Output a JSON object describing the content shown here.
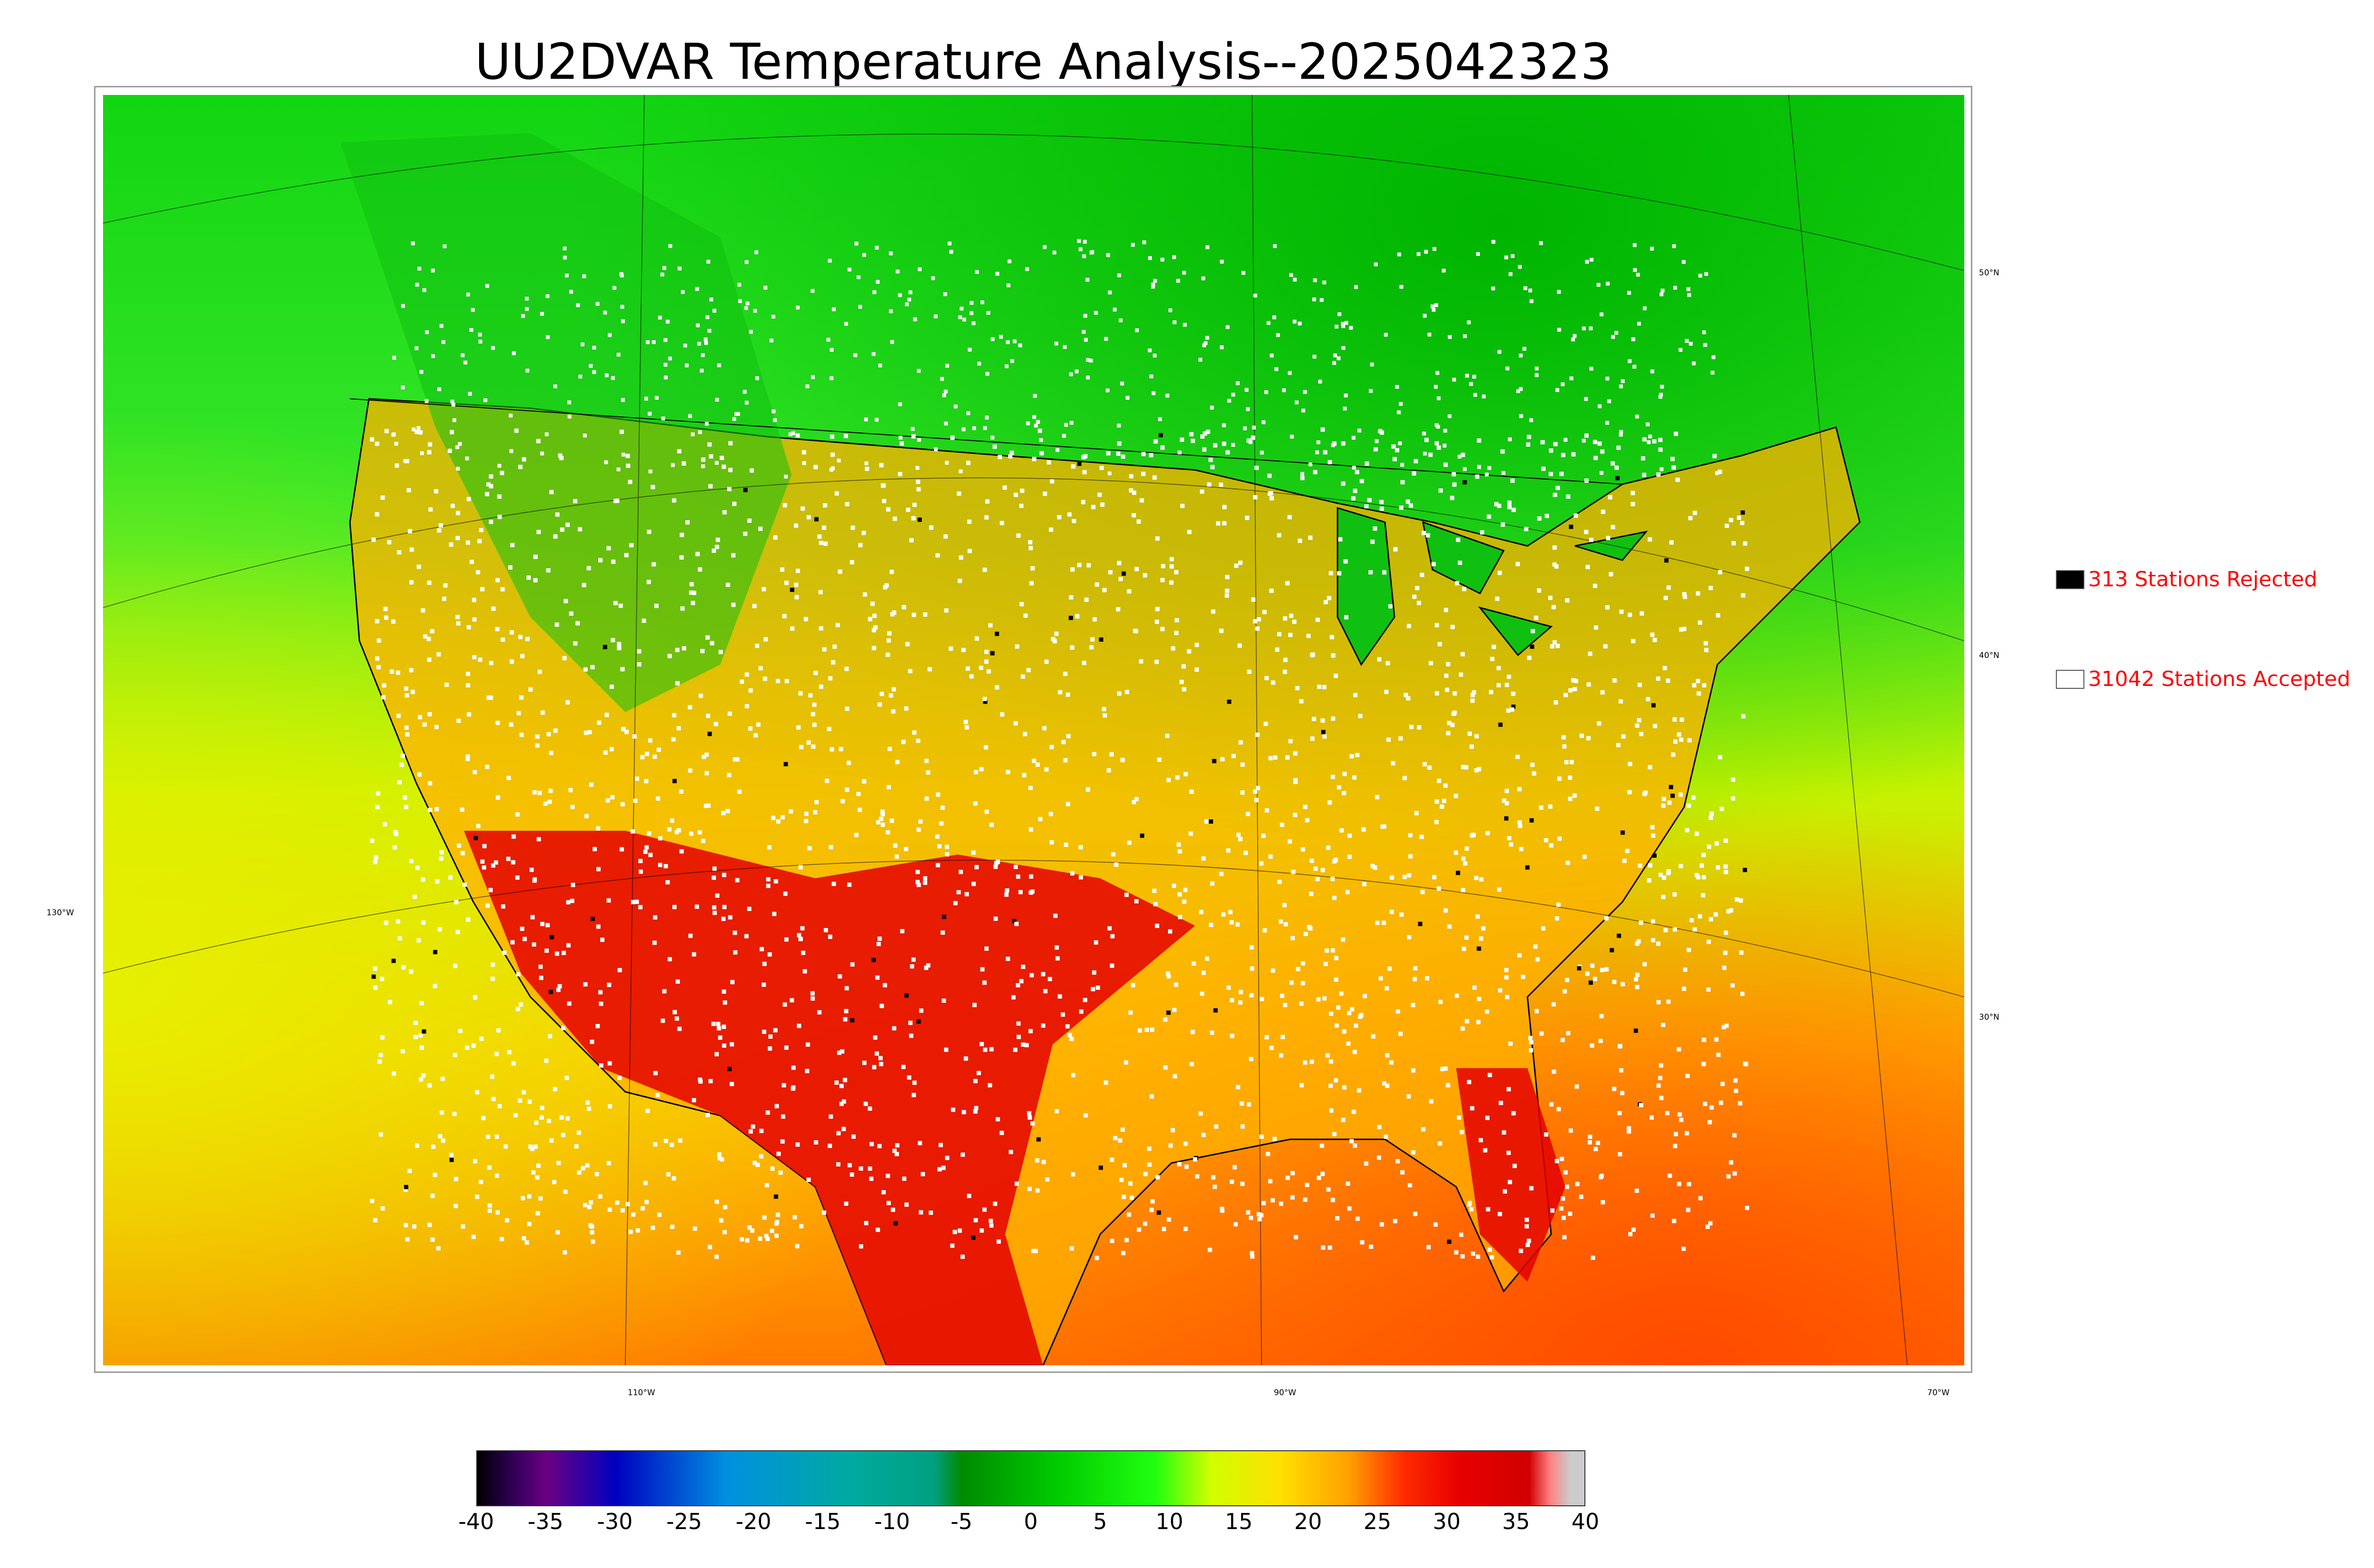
{
  "title": "UU2DVAR Temperature Analysis--2025042323",
  "legend": {
    "rejected": {
      "label": "313 Stations Rejected",
      "swatch": "#000000"
    },
    "accepted": {
      "label": "31042 Stations Accepted",
      "swatch": "#ffffff"
    }
  },
  "graticule": {
    "lat_labels": [
      "50°N",
      "40°N",
      "30°N"
    ],
    "lon_left_label": "130°W",
    "lon_bottom_labels": [
      "110°W",
      "90°W",
      "70°W"
    ]
  },
  "colorbar": {
    "ticks": [
      "-40",
      "-35",
      "-30",
      "-25",
      "-20",
      "-15",
      "-10",
      "-5",
      "0",
      "5",
      "10",
      "15",
      "20",
      "25",
      "30",
      "35",
      "40"
    ],
    "min": -40,
    "max": 40,
    "stops": [
      {
        "v": -40,
        "c": "#000000"
      },
      {
        "v": -38.5,
        "c": "#1a0033"
      },
      {
        "v": -37,
        "c": "#3a0060"
      },
      {
        "v": -35,
        "c": "#6b0082"
      },
      {
        "v": -30,
        "c": "#0000c0"
      },
      {
        "v": -22,
        "c": "#0090e0"
      },
      {
        "v": -13,
        "c": "#00aaa0"
      },
      {
        "v": -7,
        "c": "#00a080"
      },
      {
        "v": -5,
        "c": "#008a00"
      },
      {
        "v": 2,
        "c": "#00cc00"
      },
      {
        "v": 9,
        "c": "#20ff10"
      },
      {
        "v": 13,
        "c": "#d0ff00"
      },
      {
        "v": 18,
        "c": "#ffe000"
      },
      {
        "v": 23,
        "c": "#ffa000"
      },
      {
        "v": 27,
        "c": "#ff2a00"
      },
      {
        "v": 31,
        "c": "#e80000"
      },
      {
        "v": 36,
        "c": "#d00000"
      },
      {
        "v": 37.5,
        "c": "#ff8080"
      },
      {
        "v": 39,
        "c": "#cccccc"
      },
      {
        "v": 40,
        "c": "#cccccc"
      }
    ]
  }
}
